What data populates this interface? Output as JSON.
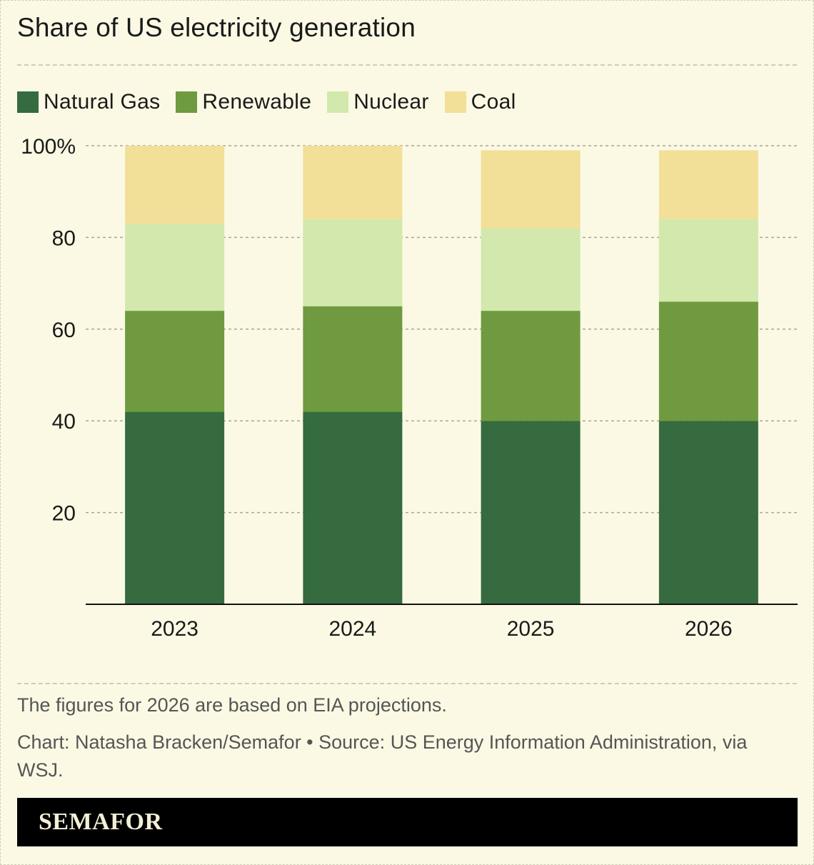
{
  "title": "Share of US electricity generation",
  "legend": [
    {
      "label": "Natural Gas",
      "color": "#356b3e"
    },
    {
      "label": "Renewable",
      "color": "#6f9a3f"
    },
    {
      "label": "Nuclear",
      "color": "#d2e8ad"
    },
    {
      "label": "Coal",
      "color": "#f2df98"
    }
  ],
  "note": "The figures for 2026 are based on EIA projections.",
  "credit": "Chart: Natasha Bracken/Semafor • Source: US Energy Information Administration, via WSJ.",
  "footer": {
    "brand": "SEMAFOR"
  },
  "chart_data": {
    "type": "bar",
    "stacked": true,
    "title": "Share of US electricity generation",
    "categories": [
      "2023",
      "2024",
      "2025",
      "2026"
    ],
    "series": [
      {
        "name": "Natural Gas",
        "color": "#356b3e",
        "values": [
          42,
          42,
          40,
          40
        ]
      },
      {
        "name": "Renewable",
        "color": "#6f9a3f",
        "values": [
          22,
          23,
          24,
          26
        ]
      },
      {
        "name": "Nuclear",
        "color": "#d2e8ad",
        "values": [
          19,
          19,
          18,
          18
        ]
      },
      {
        "name": "Coal",
        "color": "#f2df98",
        "values": [
          17,
          16,
          17,
          15
        ]
      }
    ],
    "yticks": [
      20,
      40,
      60,
      80,
      100
    ],
    "ytick_labels": [
      "20",
      "40",
      "60",
      "80",
      "100%"
    ],
    "ylim": [
      0,
      100
    ],
    "xlabel": "",
    "ylabel": "",
    "grid": true,
    "legend_position": "top-left"
  }
}
